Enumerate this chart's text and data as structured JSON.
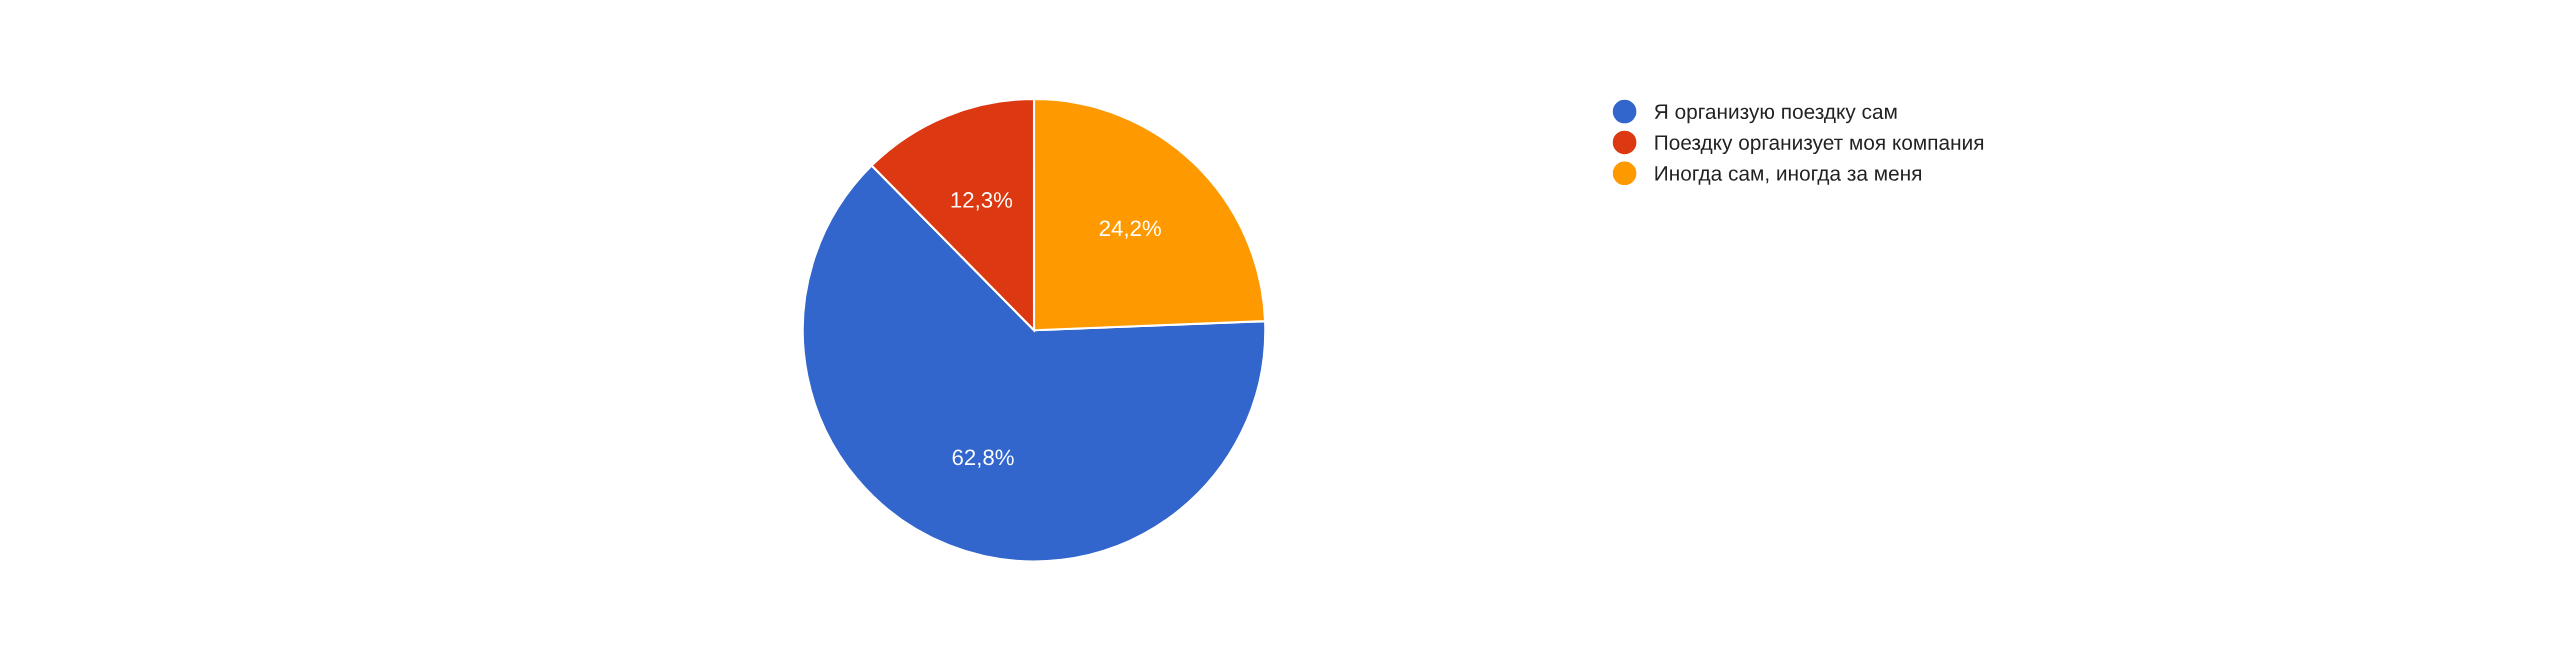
{
  "chart_data": {
    "type": "pie",
    "categories": [
      "Я организую поездку сам",
      "Поездку организует моя компания",
      "Иногда сам, иногда за меня"
    ],
    "values": [
      62.8,
      12.3,
      24.2
    ],
    "value_labels": [
      "62,8%",
      "12,3%",
      "24,2%"
    ],
    "colors": [
      "#3366cc",
      "#dc3912",
      "#ff9900"
    ],
    "legend": "right"
  }
}
